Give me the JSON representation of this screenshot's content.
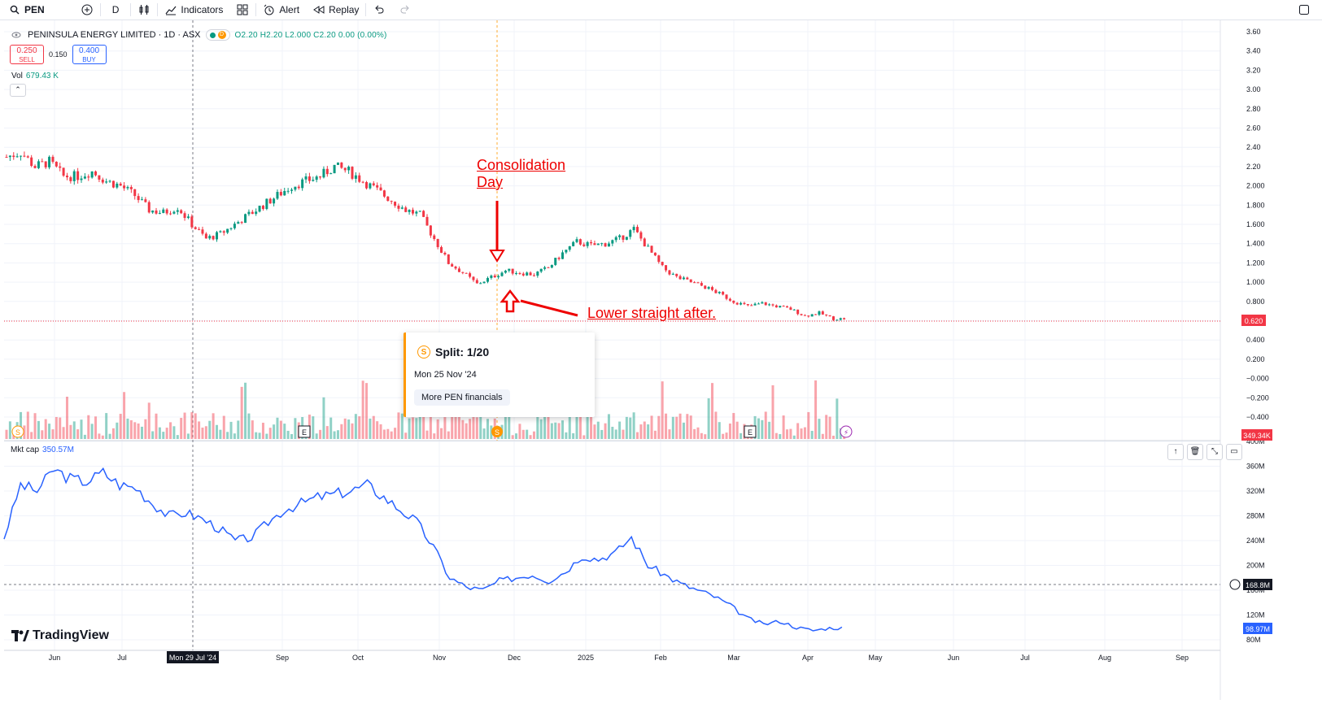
{
  "toolbar": {
    "symbol": "PEN",
    "interval": "D",
    "indicators": "Indicators",
    "alert": "Alert",
    "replay": "Replay"
  },
  "legend": {
    "title": "PENINSULA ENERGY LIMITED · 1D · ASX",
    "badge_letter": "D",
    "ohlc": "O2.20 H2.20 L2.000 C2.20 0.00 (0.00%)"
  },
  "trade": {
    "sell_price": "0.250",
    "sell_label": "SELL",
    "spread": "0.150",
    "buy_price": "0.400",
    "buy_label": "BUY"
  },
  "volume": {
    "label": "Vol",
    "value": "679.43 K"
  },
  "mktcap": {
    "label": "Mkt cap",
    "value": "350.57M"
  },
  "price_axis": [
    "3.60",
    "3.40",
    "3.20",
    "3.00",
    "2.80",
    "2.60",
    "2.40",
    "2.20",
    "2.000",
    "1.800",
    "1.600",
    "1.400",
    "1.200",
    "1.000",
    "0.800",
    "0.600",
    "0.400",
    "0.200",
    "−0.000",
    "−0.200",
    "−0.400"
  ],
  "mc_axis": [
    "400M",
    "360M",
    "320M",
    "280M",
    "240M",
    "200M",
    "160M",
    "120M",
    "80M"
  ],
  "x_axis": [
    "Jun",
    "Jul",
    "Mon 29 Jul '24",
    "Sep",
    "Oct",
    "Nov",
    "Dec",
    "2025",
    "Feb",
    "Mar",
    "Apr",
    "May",
    "Jun",
    "Jul",
    "Aug",
    "Sep"
  ],
  "price_marker": "0.620",
  "vol_marker": "349.34K",
  "mc_marker_cross": "168.8M",
  "mc_marker_last": "98.97M",
  "tooltip": {
    "icon": "S",
    "title": "Split: 1/20",
    "date": "Mon 25 Nov '24",
    "button": "More PEN financials"
  },
  "annotations": {
    "consolidation_line1": "Consolidation",
    "consolidation_line2": "Day",
    "lower": "Lower straight after."
  },
  "event_marks": {
    "split": "S",
    "earnings": "E",
    "flash": "⚡"
  },
  "logo_text": "TradingView",
  "colors": {
    "up": "#089981",
    "down": "#f23645",
    "mktcap_line": "#2962ff",
    "annotation": "#e00000"
  },
  "chart_data": [
    {
      "type": "candlestick",
      "series": [
        {
          "name": "PEN",
          "values_close": [
            2.3,
            2.35,
            2.2,
            2.25,
            2.1,
            2.1,
            2.15,
            2.05,
            2.0,
            1.9,
            1.75,
            1.72,
            1.78,
            1.6,
            1.45,
            1.5,
            1.6,
            1.7,
            1.8,
            1.9,
            2.0,
            2.05,
            2.1,
            2.2,
            2.15,
            2.05,
            1.95,
            1.85,
            1.75,
            1.7,
            1.45,
            1.2,
            1.1,
            0.98,
            1.05,
            1.12,
            1.1,
            1.08,
            1.15,
            1.3,
            1.42,
            1.38,
            1.4,
            1.45,
            1.55,
            1.35,
            1.15,
            1.05,
            1.0,
            0.95,
            0.88,
            0.8,
            0.75,
            0.78,
            0.75,
            0.72,
            0.65,
            0.68,
            0.62
          ]
        }
      ],
      "ylim": [
        -0.4,
        3.6
      ],
      "last_price": 0.62
    },
    {
      "type": "line",
      "series": [
        {
          "name": "Mkt cap",
          "values": [
            245,
            330,
            320,
            355,
            340,
            335,
            350,
            330,
            325,
            300,
            280,
            285,
            275,
            260,
            240,
            245,
            270,
            290,
            300,
            310,
            315,
            320,
            330,
            310,
            290,
            270,
            230,
            180,
            165,
            160,
            175,
            180,
            185,
            175,
            190,
            215,
            210,
            220,
            245,
            200,
            185,
            170,
            160,
            150,
            135,
            115,
            105,
            110,
            100,
            95,
            98.97
          ]
        }
      ],
      "ylim": [
        80,
        400
      ]
    }
  ]
}
